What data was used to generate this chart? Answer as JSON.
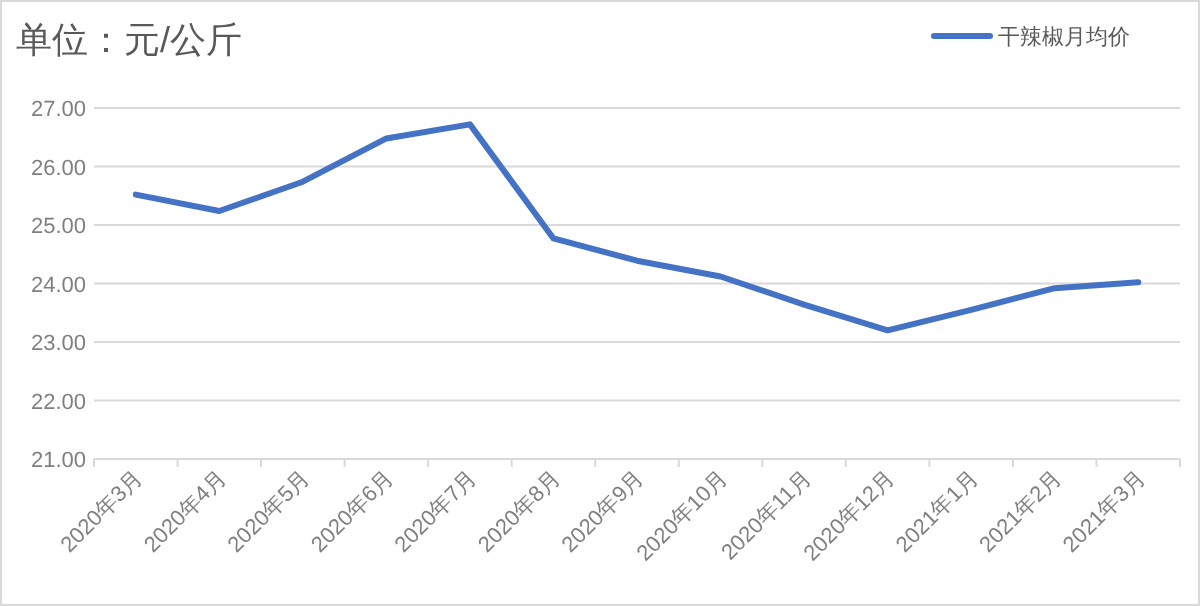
{
  "chart_data": {
    "type": "line",
    "title": "单位：元/公斤",
    "categories": [
      "2020年3月",
      "2020年4月",
      "2020年5月",
      "2020年6月",
      "2020年7月",
      "2020年8月",
      "2020年9月",
      "2020年10月",
      "2020年11月",
      "2020年12月",
      "2021年1月",
      "2021年2月",
      "2021年3月"
    ],
    "series": [
      {
        "name": "干辣椒月均价",
        "color": "#4472c4",
        "values": [
          25.52,
          25.24,
          25.74,
          26.48,
          26.72,
          24.77,
          24.39,
          24.12,
          23.64,
          23.2,
          23.55,
          23.92,
          24.02
        ]
      }
    ],
    "ylim": [
      21,
      27
    ],
    "yticks": [
      {
        "value": 21,
        "label": "21.00"
      },
      {
        "value": 22,
        "label": "22.00"
      },
      {
        "value": 23,
        "label": "23.00"
      },
      {
        "value": 24,
        "label": "24.00"
      },
      {
        "value": 25,
        "label": "25.00"
      },
      {
        "value": 26,
        "label": "26.00"
      },
      {
        "value": 27,
        "label": "27.00"
      }
    ],
    "grid": "y",
    "legend": "top right",
    "marker": "none",
    "line_style": "solid"
  }
}
